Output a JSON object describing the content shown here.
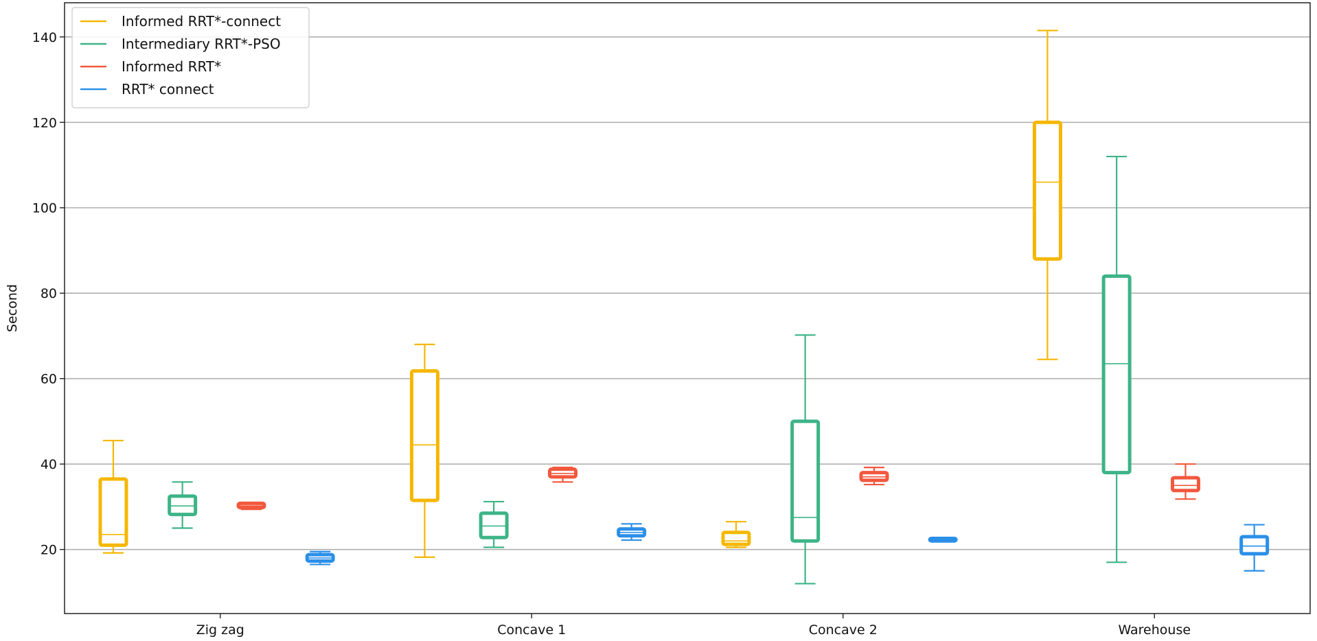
{
  "chart_data": {
    "type": "box",
    "ylabel": "Second",
    "ylim": [
      5,
      148
    ],
    "yticks": [
      20,
      40,
      60,
      80,
      100,
      120,
      140
    ],
    "grid": "horizontal",
    "legend_position": "top-left",
    "categories": [
      "Zig zag",
      "Concave 1",
      "Concave 2",
      "Warehouse"
    ],
    "series": [
      {
        "name": "Informed RRT*-connect",
        "color": "#F5B700",
        "boxes": [
          {
            "whislo": 19.2,
            "q1": 21.0,
            "med": 23.5,
            "q3": 36.5,
            "whishi": 45.5
          },
          {
            "whislo": 18.2,
            "q1": 31.5,
            "med": 44.5,
            "q3": 61.8,
            "whishi": 68.0
          },
          {
            "whislo": 20.5,
            "q1": 21.2,
            "med": 22.0,
            "q3": 24.0,
            "whishi": 26.5
          },
          {
            "whislo": 64.5,
            "q1": 88.0,
            "med": 106.0,
            "q3": 120.0,
            "whishi": 141.5
          }
        ]
      },
      {
        "name": "Intermediary RRT*-PSO",
        "color": "#3DB487",
        "boxes": [
          {
            "whislo": 25.0,
            "q1": 28.2,
            "med": 30.2,
            "q3": 32.5,
            "whishi": 35.8
          },
          {
            "whislo": 20.5,
            "q1": 22.8,
            "med": 25.5,
            "q3": 28.5,
            "whishi": 31.2
          },
          {
            "whislo": 12.0,
            "q1": 22.0,
            "med": 27.5,
            "q3": 50.0,
            "whishi": 70.2
          },
          {
            "whislo": 17.0,
            "q1": 38.0,
            "med": 63.5,
            "q3": 84.0,
            "whishi": 112.0
          }
        ]
      },
      {
        "name": "Informed RRT*",
        "color": "#F2583E",
        "boxes": [
          {
            "whislo": 29.4,
            "q1": 29.8,
            "med": 30.2,
            "q3": 30.8,
            "whishi": 31.0
          },
          {
            "whislo": 35.8,
            "q1": 37.0,
            "med": 37.8,
            "q3": 38.8,
            "whishi": 39.2
          },
          {
            "whislo": 35.2,
            "q1": 36.2,
            "med": 37.0,
            "q3": 38.0,
            "whishi": 39.2
          },
          {
            "whislo": 31.8,
            "q1": 33.8,
            "med": 35.0,
            "q3": 36.8,
            "whishi": 40.0
          }
        ]
      },
      {
        "name": "RRT* connect",
        "color": "#2B8FE8",
        "boxes": [
          {
            "whislo": 16.5,
            "q1": 17.3,
            "med": 18.0,
            "q3": 18.8,
            "whishi": 19.5
          },
          {
            "whislo": 22.2,
            "q1": 23.2,
            "med": 24.0,
            "q3": 24.8,
            "whishi": 26.0
          },
          {
            "whislo": 21.9,
            "q1": 22.0,
            "med": 22.3,
            "q3": 22.6,
            "whishi": 22.7
          },
          {
            "whislo": 15.0,
            "q1": 19.0,
            "med": 20.8,
            "q3": 23.0,
            "whishi": 25.8
          }
        ]
      }
    ]
  }
}
